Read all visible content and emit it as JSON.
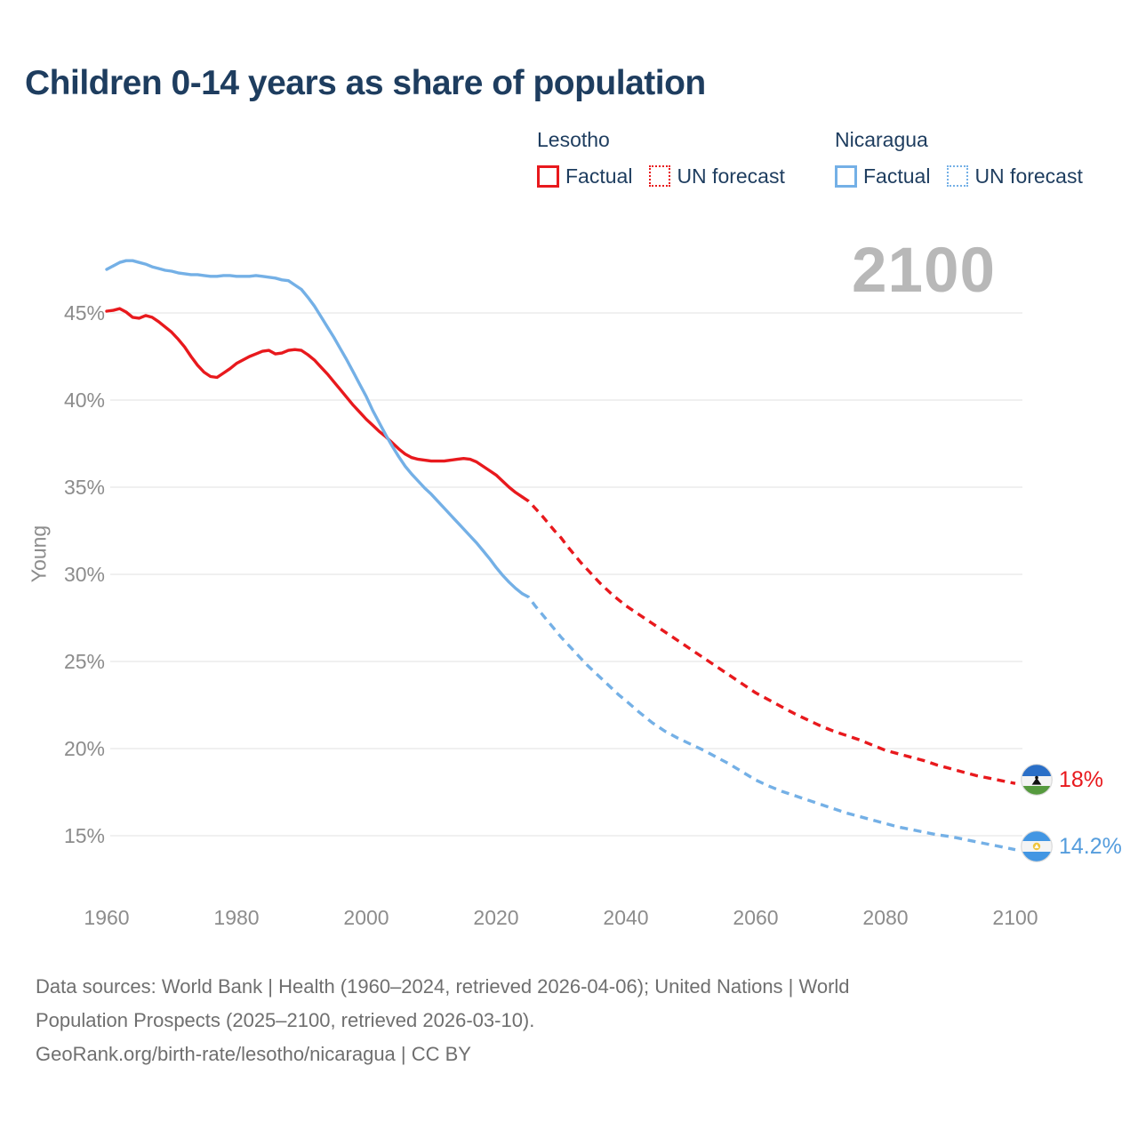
{
  "title": "Children 0-14 years as share of population",
  "watermark": "2100",
  "legend": {
    "lesotho": {
      "label": "Lesotho",
      "factual": "Factual",
      "forecast": "UN forecast"
    },
    "nicaragua": {
      "label": "Nicaragua",
      "factual": "Factual",
      "forecast": "UN forecast"
    }
  },
  "end_labels": {
    "lesotho": "18%",
    "nicaragua": "14.2%"
  },
  "footer": {
    "line1": "Data sources: World Bank | Health (1960–2024, retrieved 2026-04-06); United Nations | World",
    "line2": "Population Prospects (2025–2100, retrieved 2026-03-10).",
    "line3": "GeoRank.org/birth-rate/lesotho/nicaragua | CC BY"
  },
  "colors": {
    "lesotho_line": "#e8191d",
    "nicaragua_line": "#74b0e6",
    "nicaragua_label": "#559ddd",
    "title_text": "#1e3d5f",
    "axis_text": "#8c8c8c",
    "gridline": "#e8e8e8",
    "watermark": "#b8b8b8",
    "footer_text": "#6f6f6f"
  },
  "chart_data": {
    "type": "line",
    "title": "Children 0-14 years as share of population",
    "ylabel": "Young",
    "xlabel": "",
    "grid": "horizontal",
    "legend_position": "top-right",
    "xlim": [
      1960,
      2100
    ],
    "ylim": [
      14,
      48.5
    ],
    "x_ticks": [
      1960,
      1980,
      2000,
      2020,
      2040,
      2060,
      2080,
      2100
    ],
    "x_tick_labels": [
      "1960",
      "1980",
      "2000",
      "2020",
      "2040",
      "2060",
      "2080",
      "2100"
    ],
    "y_ticks": [
      45,
      40,
      35,
      30,
      25,
      20,
      15
    ],
    "y_tick_labels": [
      "45%",
      "40%",
      "35%",
      "30%",
      "25%",
      "20%",
      "15%"
    ],
    "series": [
      {
        "id": "lesotho-factual",
        "name": "Lesotho Factual",
        "color": "#e8191d",
        "line_style": "solid",
        "points": [
          [
            1960,
            45.1
          ],
          [
            1961,
            45.15
          ],
          [
            1962,
            45.25
          ],
          [
            1963,
            45.05
          ],
          [
            1964,
            44.75
          ],
          [
            1965,
            44.7
          ],
          [
            1966,
            44.85
          ],
          [
            1967,
            44.75
          ],
          [
            1968,
            44.5
          ],
          [
            1969,
            44.2
          ],
          [
            1970,
            43.9
          ],
          [
            1971,
            43.5
          ],
          [
            1972,
            43.05
          ],
          [
            1973,
            42.5
          ],
          [
            1974,
            42.0
          ],
          [
            1975,
            41.6
          ],
          [
            1976,
            41.35
          ],
          [
            1977,
            41.3
          ],
          [
            1978,
            41.55
          ],
          [
            1979,
            41.8
          ],
          [
            1980,
            42.1
          ],
          [
            1981,
            42.3
          ],
          [
            1982,
            42.5
          ],
          [
            1983,
            42.65
          ],
          [
            1984,
            42.8
          ],
          [
            1985,
            42.85
          ],
          [
            1986,
            42.65
          ],
          [
            1987,
            42.7
          ],
          [
            1988,
            42.85
          ],
          [
            1989,
            42.9
          ],
          [
            1990,
            42.85
          ],
          [
            1991,
            42.6
          ],
          [
            1992,
            42.3
          ],
          [
            1993,
            41.9
          ],
          [
            1994,
            41.5
          ],
          [
            1995,
            41.05
          ],
          [
            1996,
            40.6
          ],
          [
            1997,
            40.15
          ],
          [
            1998,
            39.7
          ],
          [
            1999,
            39.3
          ],
          [
            2000,
            38.9
          ],
          [
            2001,
            38.55
          ],
          [
            2002,
            38.2
          ],
          [
            2003,
            37.9
          ],
          [
            2004,
            37.55
          ],
          [
            2005,
            37.2
          ],
          [
            2006,
            36.9
          ],
          [
            2007,
            36.7
          ],
          [
            2008,
            36.6
          ],
          [
            2009,
            36.55
          ],
          [
            2010,
            36.5
          ],
          [
            2011,
            36.5
          ],
          [
            2012,
            36.5
          ],
          [
            2013,
            36.55
          ],
          [
            2014,
            36.6
          ],
          [
            2015,
            36.65
          ],
          [
            2016,
            36.6
          ],
          [
            2017,
            36.45
          ],
          [
            2018,
            36.2
          ],
          [
            2019,
            35.95
          ],
          [
            2020,
            35.7
          ],
          [
            2021,
            35.35
          ],
          [
            2022,
            35.0
          ],
          [
            2023,
            34.7
          ],
          [
            2024,
            34.45
          ]
        ]
      },
      {
        "id": "lesotho-forecast",
        "name": "Lesotho UN forecast",
        "color": "#e8191d",
        "line_style": "dashed",
        "points": [
          [
            2024,
            34.45
          ],
          [
            2025,
            34.2
          ],
          [
            2026,
            33.8
          ],
          [
            2027,
            33.4
          ],
          [
            2028,
            32.95
          ],
          [
            2029,
            32.5
          ],
          [
            2030,
            32.1
          ],
          [
            2031,
            31.6
          ],
          [
            2032,
            31.15
          ],
          [
            2033,
            30.7
          ],
          [
            2034,
            30.3
          ],
          [
            2035,
            29.9
          ],
          [
            2036,
            29.5
          ],
          [
            2037,
            29.15
          ],
          [
            2038,
            28.8
          ],
          [
            2039,
            28.5
          ],
          [
            2040,
            28.2
          ],
          [
            2042,
            27.7
          ],
          [
            2044,
            27.2
          ],
          [
            2046,
            26.7
          ],
          [
            2048,
            26.2
          ],
          [
            2050,
            25.7
          ],
          [
            2052,
            25.2
          ],
          [
            2054,
            24.7
          ],
          [
            2056,
            24.2
          ],
          [
            2058,
            23.7
          ],
          [
            2060,
            23.2
          ],
          [
            2062,
            22.8
          ],
          [
            2064,
            22.4
          ],
          [
            2066,
            22.0
          ],
          [
            2068,
            21.65
          ],
          [
            2070,
            21.3
          ],
          [
            2072,
            21.0
          ],
          [
            2074,
            20.75
          ],
          [
            2076,
            20.5
          ],
          [
            2078,
            20.2
          ],
          [
            2080,
            19.9
          ],
          [
            2082,
            19.7
          ],
          [
            2084,
            19.5
          ],
          [
            2086,
            19.3
          ],
          [
            2088,
            19.05
          ],
          [
            2090,
            18.85
          ],
          [
            2092,
            18.65
          ],
          [
            2094,
            18.45
          ],
          [
            2096,
            18.3
          ],
          [
            2098,
            18.15
          ],
          [
            2100,
            18.0
          ]
        ]
      },
      {
        "id": "nicaragua-factual",
        "name": "Nicaragua Factual",
        "color": "#74b0e6",
        "line_style": "solid",
        "points": [
          [
            1960,
            47.5
          ],
          [
            1961,
            47.7
          ],
          [
            1962,
            47.9
          ],
          [
            1963,
            48.0
          ],
          [
            1964,
            48.0
          ],
          [
            1965,
            47.9
          ],
          [
            1966,
            47.8
          ],
          [
            1967,
            47.65
          ],
          [
            1968,
            47.55
          ],
          [
            1969,
            47.45
          ],
          [
            1970,
            47.4
          ],
          [
            1971,
            47.3
          ],
          [
            1972,
            47.25
          ],
          [
            1973,
            47.2
          ],
          [
            1974,
            47.2
          ],
          [
            1975,
            47.15
          ],
          [
            1976,
            47.1
          ],
          [
            1977,
            47.1
          ],
          [
            1978,
            47.15
          ],
          [
            1979,
            47.15
          ],
          [
            1980,
            47.1
          ],
          [
            1981,
            47.1
          ],
          [
            1982,
            47.1
          ],
          [
            1983,
            47.15
          ],
          [
            1984,
            47.1
          ],
          [
            1985,
            47.05
          ],
          [
            1986,
            47.0
          ],
          [
            1987,
            46.9
          ],
          [
            1988,
            46.85
          ],
          [
            1989,
            46.6
          ],
          [
            1990,
            46.35
          ],
          [
            1991,
            45.9
          ],
          [
            1992,
            45.4
          ],
          [
            1993,
            44.8
          ],
          [
            1994,
            44.2
          ],
          [
            1995,
            43.6
          ],
          [
            1996,
            42.95
          ],
          [
            1997,
            42.3
          ],
          [
            1998,
            41.6
          ],
          [
            1999,
            40.9
          ],
          [
            2000,
            40.2
          ],
          [
            2001,
            39.4
          ],
          [
            2002,
            38.7
          ],
          [
            2003,
            38.0
          ],
          [
            2004,
            37.35
          ],
          [
            2005,
            36.75
          ],
          [
            2006,
            36.2
          ],
          [
            2007,
            35.75
          ],
          [
            2008,
            35.35
          ],
          [
            2009,
            34.95
          ],
          [
            2010,
            34.6
          ],
          [
            2011,
            34.2
          ],
          [
            2012,
            33.8
          ],
          [
            2013,
            33.4
          ],
          [
            2014,
            33.0
          ],
          [
            2015,
            32.6
          ],
          [
            2016,
            32.2
          ],
          [
            2017,
            31.8
          ],
          [
            2018,
            31.35
          ],
          [
            2019,
            30.9
          ],
          [
            2020,
            30.4
          ],
          [
            2021,
            29.95
          ],
          [
            2022,
            29.55
          ],
          [
            2023,
            29.2
          ],
          [
            2024,
            28.9
          ]
        ]
      },
      {
        "id": "nicaragua-forecast",
        "name": "Nicaragua UN forecast",
        "color": "#74b0e6",
        "line_style": "dashed",
        "points": [
          [
            2024,
            28.9
          ],
          [
            2025,
            28.7
          ],
          [
            2026,
            28.2
          ],
          [
            2027,
            27.75
          ],
          [
            2028,
            27.3
          ],
          [
            2029,
            26.85
          ],
          [
            2030,
            26.4
          ],
          [
            2031,
            26.0
          ],
          [
            2032,
            25.6
          ],
          [
            2033,
            25.2
          ],
          [
            2034,
            24.8
          ],
          [
            2035,
            24.45
          ],
          [
            2036,
            24.1
          ],
          [
            2037,
            23.75
          ],
          [
            2038,
            23.4
          ],
          [
            2039,
            23.05
          ],
          [
            2040,
            22.75
          ],
          [
            2042,
            22.1
          ],
          [
            2044,
            21.5
          ],
          [
            2046,
            21.0
          ],
          [
            2048,
            20.6
          ],
          [
            2050,
            20.25
          ],
          [
            2052,
            19.9
          ],
          [
            2054,
            19.5
          ],
          [
            2056,
            19.1
          ],
          [
            2058,
            18.65
          ],
          [
            2060,
            18.2
          ],
          [
            2062,
            17.85
          ],
          [
            2064,
            17.55
          ],
          [
            2066,
            17.3
          ],
          [
            2068,
            17.05
          ],
          [
            2070,
            16.8
          ],
          [
            2072,
            16.55
          ],
          [
            2074,
            16.3
          ],
          [
            2076,
            16.1
          ],
          [
            2078,
            15.9
          ],
          [
            2080,
            15.7
          ],
          [
            2082,
            15.5
          ],
          [
            2084,
            15.35
          ],
          [
            2086,
            15.2
          ],
          [
            2088,
            15.05
          ],
          [
            2090,
            14.95
          ],
          [
            2092,
            14.8
          ],
          [
            2094,
            14.65
          ],
          [
            2096,
            14.5
          ],
          [
            2098,
            14.35
          ],
          [
            2100,
            14.2
          ]
        ]
      }
    ],
    "end_annotations": [
      {
        "series": "lesotho-forecast",
        "year": 2100,
        "value": 18.0,
        "label": "18%",
        "flag": "lesotho"
      },
      {
        "series": "nicaragua-forecast",
        "year": 2100,
        "value": 14.2,
        "label": "14.2%",
        "flag": "nicaragua"
      }
    ]
  }
}
